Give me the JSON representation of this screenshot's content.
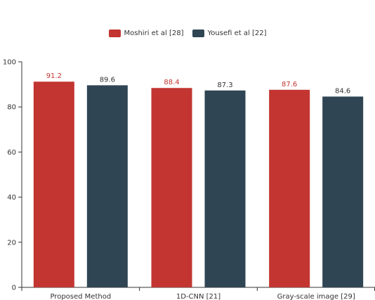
{
  "chart_data": {
    "type": "bar",
    "categories": [
      "Proposed Method",
      "1D-CNN [21]",
      "Gray-scale image [29]"
    ],
    "series": [
      {
        "name": "Moshiri et al [28]",
        "values": [
          91.2,
          88.4,
          87.6
        ],
        "color": "#c23531"
      },
      {
        "name": "Yousefi et al [22]",
        "values": [
          89.6,
          87.3,
          84.6
        ],
        "color": "#2f4554"
      }
    ],
    "title": "",
    "xlabel": "",
    "ylabel": "",
    "ylim": [
      0,
      100
    ],
    "yticks": [
      0,
      20,
      40,
      60,
      80,
      100
    ],
    "grid": false,
    "legend_position": "top-center",
    "label_colors": [
      "#c23531",
      "#333333"
    ]
  }
}
